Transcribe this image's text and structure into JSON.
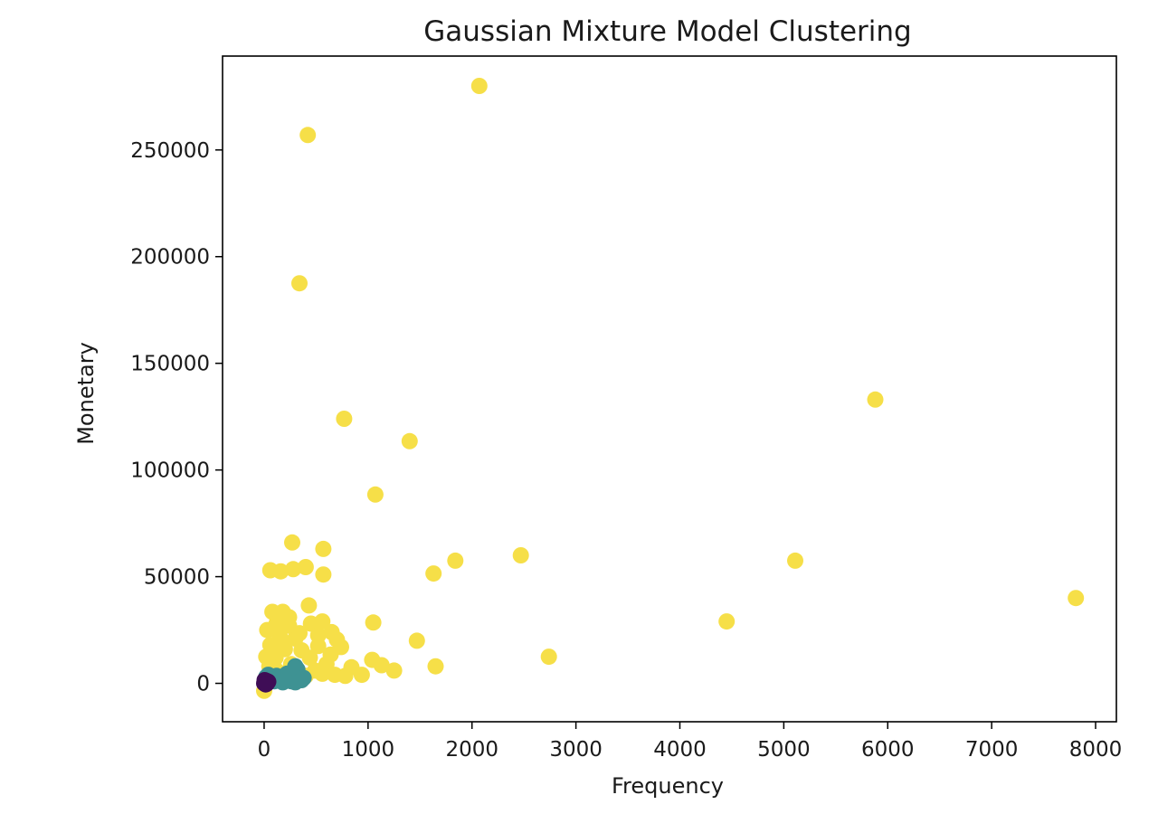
{
  "chart_data": {
    "type": "scatter",
    "title": "Gaussian Mixture Model Clustering",
    "xlabel": "Frequency",
    "ylabel": "Monetary",
    "xlim": [
      -400,
      8200
    ],
    "ylim": [
      -18000,
      294000
    ],
    "xticks": [
      0,
      1000,
      2000,
      3000,
      4000,
      5000,
      6000,
      7000,
      8000
    ],
    "yticks": [
      0,
      50000,
      100000,
      150000,
      200000,
      250000
    ],
    "grid": false,
    "colors": {
      "cluster_yellow": "#f6df48",
      "cluster_teal": "#3e9293",
      "cluster_purple": "#3f0d56"
    },
    "series": [
      {
        "color_key": "cluster_yellow",
        "points": [
          [
            2070,
            280000
          ],
          [
            420,
            257000
          ],
          [
            340,
            187500
          ],
          [
            5880,
            133000
          ],
          [
            770,
            124000
          ],
          [
            1400,
            113500
          ],
          [
            1070,
            88500
          ],
          [
            270,
            66000
          ],
          [
            570,
            63000
          ],
          [
            2470,
            60000
          ],
          [
            1840,
            57500
          ],
          [
            5110,
            57500
          ],
          [
            1630,
            51500
          ],
          [
            570,
            51000
          ],
          [
            60,
            53000
          ],
          [
            160,
            52500
          ],
          [
            280,
            53500
          ],
          [
            400,
            54500
          ],
          [
            7810,
            40000
          ],
          [
            4450,
            29000
          ],
          [
            1050,
            28500
          ],
          [
            430,
            36500
          ],
          [
            560,
            29000
          ],
          [
            80,
            33500
          ],
          [
            180,
            33500
          ],
          [
            120,
            28000
          ],
          [
            240,
            27000
          ],
          [
            450,
            28000
          ],
          [
            2740,
            12500
          ],
          [
            1470,
            20000
          ],
          [
            1650,
            8000
          ],
          [
            1250,
            6000
          ],
          [
            1130,
            8500
          ],
          [
            1040,
            11000
          ],
          [
            940,
            4000
          ],
          [
            840,
            7500
          ],
          [
            740,
            17000
          ],
          [
            700,
            20500
          ],
          [
            640,
            13500
          ],
          [
            600,
            9000
          ],
          [
            520,
            17500
          ],
          [
            490,
            6000
          ],
          [
            440,
            12000
          ],
          [
            360,
            15500
          ],
          [
            300,
            21000
          ],
          [
            260,
            9000
          ],
          [
            200,
            16000
          ],
          [
            150,
            22000
          ],
          [
            110,
            12000
          ],
          [
            60,
            18000
          ],
          [
            30,
            25000
          ],
          [
            50,
            8000
          ],
          [
            120,
            6000
          ],
          [
            210,
            4500
          ],
          [
            320,
            5000
          ],
          [
            400,
            3500
          ],
          [
            560,
            4500
          ],
          [
            680,
            4000
          ],
          [
            780,
            3500
          ],
          [
            240,
            31000
          ],
          [
            160,
            20500
          ],
          [
            80,
            14500
          ],
          [
            20,
            12500
          ],
          [
            0,
            -3500
          ],
          [
            340,
            23500
          ],
          [
            650,
            24000
          ],
          [
            520,
            22500
          ]
        ]
      },
      {
        "color_key": "cluster_teal",
        "points": [
          [
            40,
            4000
          ],
          [
            80,
            2500
          ],
          [
            120,
            3500
          ],
          [
            160,
            1500
          ],
          [
            200,
            3000
          ],
          [
            240,
            2000
          ],
          [
            280,
            4000
          ],
          [
            300,
            8000
          ],
          [
            320,
            6500
          ],
          [
            340,
            3000
          ],
          [
            360,
            1500
          ],
          [
            380,
            2500
          ],
          [
            100,
            1000
          ],
          [
            180,
            500
          ],
          [
            260,
            1000
          ],
          [
            60,
            1500
          ],
          [
            20,
            3000
          ],
          [
            140,
            2000
          ],
          [
            220,
            4500
          ],
          [
            300,
            500
          ]
        ]
      },
      {
        "color_key": "cluster_purple",
        "points": [
          [
            0,
            0
          ],
          [
            10,
            500
          ],
          [
            20,
            1200
          ],
          [
            30,
            200
          ],
          [
            5,
            1500
          ],
          [
            15,
            -500
          ],
          [
            40,
            800
          ],
          [
            25,
            -200
          ]
        ]
      }
    ]
  }
}
